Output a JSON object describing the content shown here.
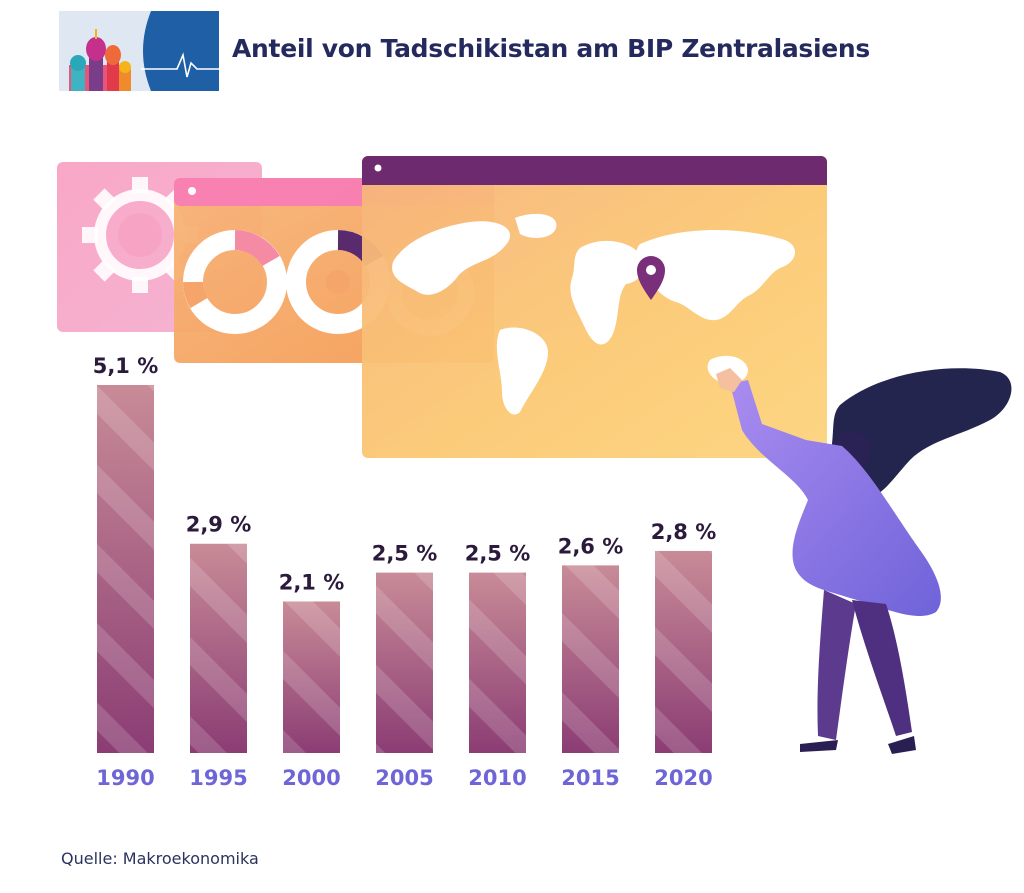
{
  "title": "Anteil von Tadschikistan am BIP Zentralasiens",
  "source": "Quelle: Makroekonomika",
  "colors": {
    "title": "#252a5e",
    "bar_top": "#c88b97",
    "bar_bottom": "#8b3d74",
    "value_label": "#2c1a3d",
    "category_label": "#6e66d6"
  },
  "chart_data": {
    "type": "bar",
    "title": "Anteil von Tadschikistan am BIP Zentralasiens",
    "xlabel": "",
    "ylabel": "",
    "categories": [
      "1990",
      "1995",
      "2000",
      "2005",
      "2010",
      "2015",
      "2020"
    ],
    "values": [
      5.1,
      2.9,
      2.1,
      2.5,
      2.5,
      2.6,
      2.8
    ],
    "labels": [
      "5,1 %",
      "2,9 %",
      "2,1 %",
      "2,5 %",
      "2,5 %",
      "2,6 %",
      "2,8 %"
    ],
    "unit": "%",
    "ylim": [
      0,
      5.1
    ],
    "grid": false,
    "legend": "none"
  }
}
